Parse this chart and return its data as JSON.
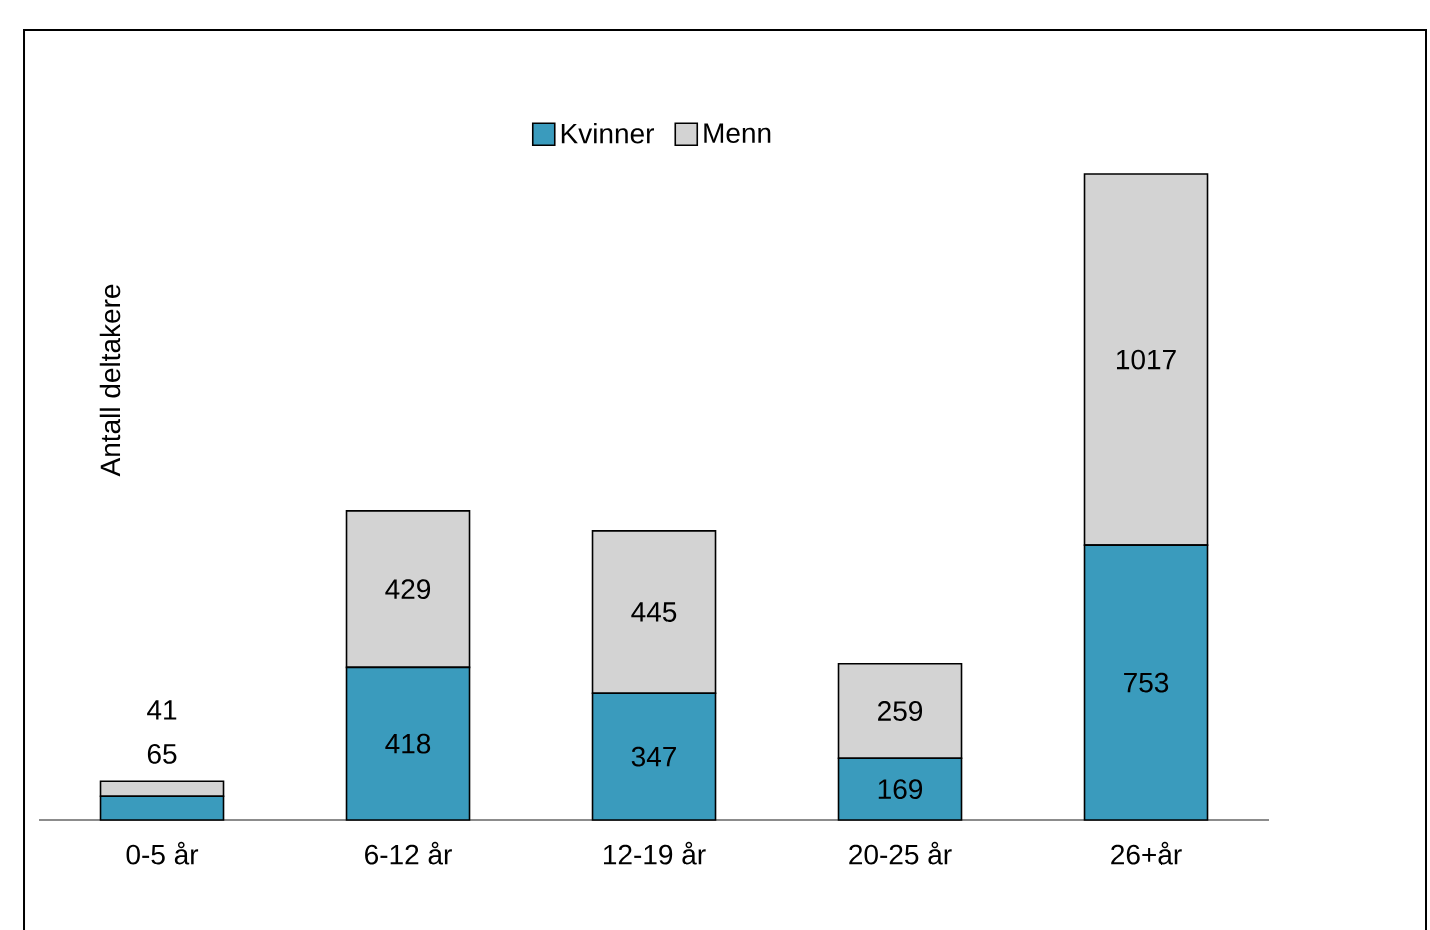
{
  "chart_data": {
    "type": "bar",
    "stacked": true,
    "ylabel": "Antall deltakere",
    "categories": [
      "0-5 år",
      "6-12 år",
      "12-19 år",
      "20-25 år",
      "26+år"
    ],
    "series": [
      {
        "name": "Kvinner",
        "color": "#3a9bbd",
        "values": [
          65,
          418,
          347,
          169,
          753
        ]
      },
      {
        "name": "Menn",
        "color": "#d3d3d3",
        "values": [
          41,
          429,
          445,
          259,
          1017
        ]
      }
    ],
    "data_labels": true,
    "legend": "top"
  }
}
